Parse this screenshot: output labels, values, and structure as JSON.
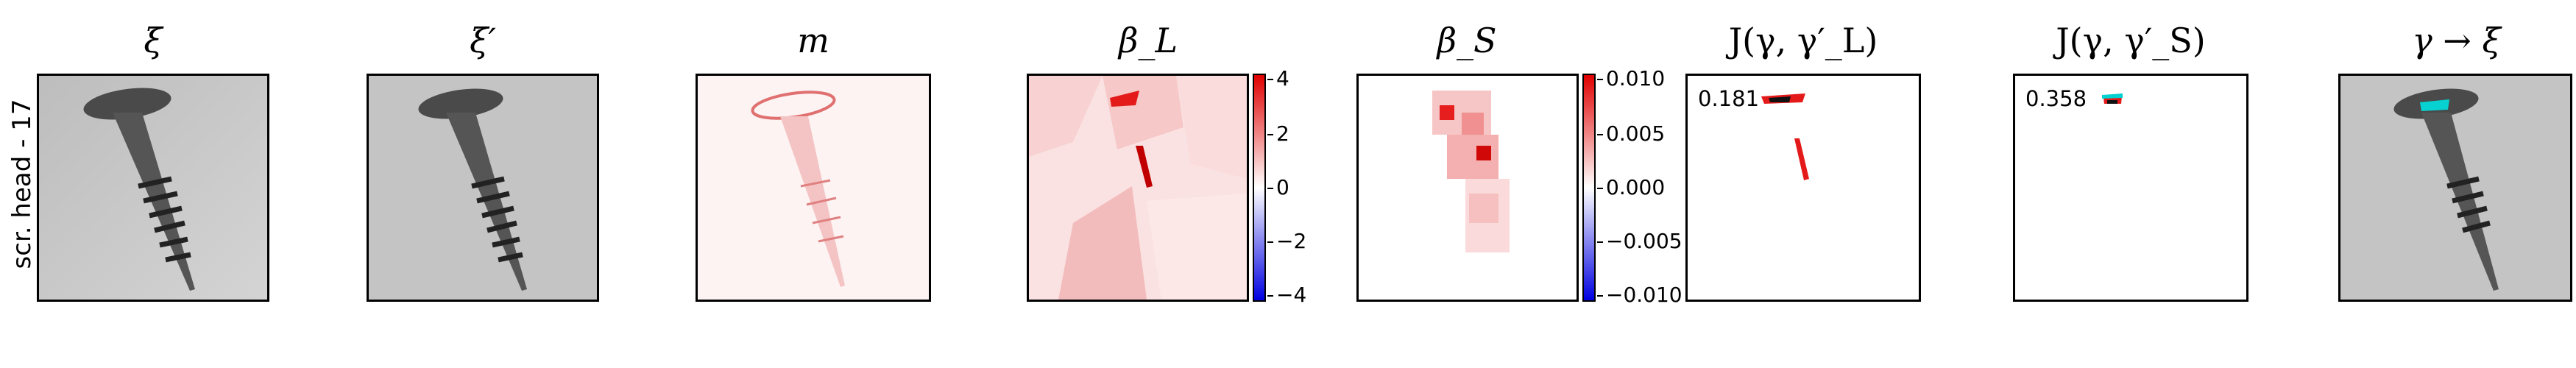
{
  "figure": {
    "row_label": "scr. head - 17",
    "panels": [
      {
        "key": "xi",
        "title": "ξ"
      },
      {
        "key": "xi_prime",
        "title": "ξ′"
      },
      {
        "key": "m",
        "title": "m"
      },
      {
        "key": "beta_L",
        "title": "β_L"
      },
      {
        "key": "beta_S",
        "title": "β_S"
      },
      {
        "key": "J_L",
        "title": "J(γ, γ′_L)"
      },
      {
        "key": "J_S",
        "title": "J(γ, γ′_S)"
      },
      {
        "key": "gamma_xi",
        "title": "γ → ξ"
      }
    ],
    "beta_L_colorbar": {
      "ticks": [
        "4",
        "2",
        "0",
        "−2",
        "−4"
      ],
      "range": [
        -4,
        4
      ]
    },
    "beta_S_colorbar": {
      "ticks": [
        "0.010",
        "0.005",
        "0.000",
        "−0.005",
        "−0.010"
      ],
      "range": [
        -0.01,
        0.01
      ]
    },
    "J_L_score": "0.181",
    "J_S_score": "0.358",
    "colors": {
      "positive": "#e00000",
      "negative": "#0000e0",
      "overlay": "#00d0d0",
      "image_bg": "#c8c8c8"
    }
  }
}
